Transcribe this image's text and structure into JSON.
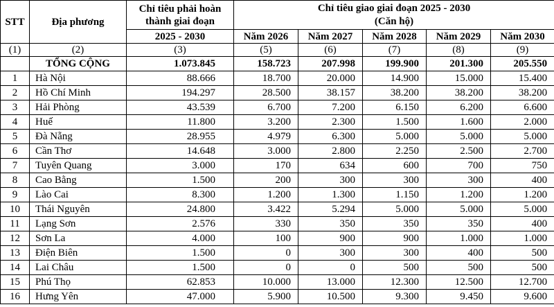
{
  "table": {
    "headers": {
      "stt": "STT",
      "dia_phuong": "Địa phương",
      "chi_tieu_phai": "Chỉ tiêu phải hoàn thành giai đoạn",
      "chi_tieu_phai_range": "2025 - 2030",
      "chi_tieu_giao_line1": "Chỉ tiêu giao giai đoạn 2025 - 2030",
      "chi_tieu_giao_line2": "(Căn hộ)",
      "years": [
        "Năm 2026",
        "Năm 2027",
        "Năm 2028",
        "Năm 2029",
        "Năm 2030"
      ],
      "col_numbers": [
        "(1)",
        "(2)",
        "(3)",
        "(5)",
        "(6)",
        "(7)",
        "(8)",
        "(9)"
      ]
    },
    "total_row": {
      "label": "TỔNG CỘNG",
      "values": [
        "1.073.845",
        "158.723",
        "207.998",
        "199.900",
        "201.300",
        "205.550"
      ]
    },
    "rows": [
      {
        "stt": "1",
        "name": "Hà Nội",
        "values": [
          "88.666",
          "18.700",
          "20.000",
          "14.900",
          "15.000",
          "15.400"
        ]
      },
      {
        "stt": "2",
        "name": "Hồ Chí Minh",
        "values": [
          "194.297",
          "28.500",
          "38.157",
          "38.200",
          "38.200",
          "38.200"
        ]
      },
      {
        "stt": "3",
        "name": "Hải Phòng",
        "values": [
          "43.539",
          "6.700",
          "7.200",
          "6.150",
          "6.200",
          "6.600"
        ]
      },
      {
        "stt": "4",
        "name": "Huế",
        "values": [
          "11.800",
          "3.200",
          "2.300",
          "1.500",
          "1.600",
          "2.000"
        ]
      },
      {
        "stt": "5",
        "name": "Đà Nẵng",
        "values": [
          "28.955",
          "4.979",
          "6.300",
          "5.000",
          "5.000",
          "5.000"
        ]
      },
      {
        "stt": "6",
        "name": "Cần Thơ",
        "values": [
          "14.648",
          "3.000",
          "2.800",
          "2.250",
          "2.500",
          "2.700"
        ]
      },
      {
        "stt": "7",
        "name": "Tuyên Quang",
        "values": [
          "3.000",
          "170",
          "634",
          "600",
          "700",
          "750"
        ]
      },
      {
        "stt": "8",
        "name": "Cao Bằng",
        "values": [
          "1.500",
          "200",
          "300",
          "300",
          "300",
          "400"
        ]
      },
      {
        "stt": "9",
        "name": "Lào Cai",
        "values": [
          "8.300",
          "1.200",
          "1.300",
          "1.150",
          "1.200",
          "1.200"
        ]
      },
      {
        "stt": "10",
        "name": "Thái Nguyên",
        "values": [
          "24.800",
          "3.422",
          "5.294",
          "5.000",
          "5.000",
          "5.000"
        ]
      },
      {
        "stt": "11",
        "name": "Lạng Sơn",
        "values": [
          "2.576",
          "330",
          "350",
          "350",
          "350",
          "400"
        ]
      },
      {
        "stt": "12",
        "name": "Sơn La",
        "values": [
          "4.000",
          "100",
          "900",
          "900",
          "1.000",
          "1.000"
        ]
      },
      {
        "stt": "13",
        "name": "Điện Biên",
        "values": [
          "1.500",
          "0",
          "300",
          "300",
          "400",
          "500"
        ]
      },
      {
        "stt": "14",
        "name": "Lai Châu",
        "values": [
          "1.500",
          "0",
          "0",
          "500",
          "500",
          "500"
        ]
      },
      {
        "stt": "15",
        "name": "Phú Thọ",
        "values": [
          "62.853",
          "10.000",
          "13.000",
          "12.300",
          "12.500",
          "12.700"
        ]
      },
      {
        "stt": "16",
        "name": "Hưng Yên",
        "values": [
          "47.000",
          "5.900",
          "10.500",
          "9.300",
          "9.450",
          "9.600"
        ]
      }
    ]
  }
}
